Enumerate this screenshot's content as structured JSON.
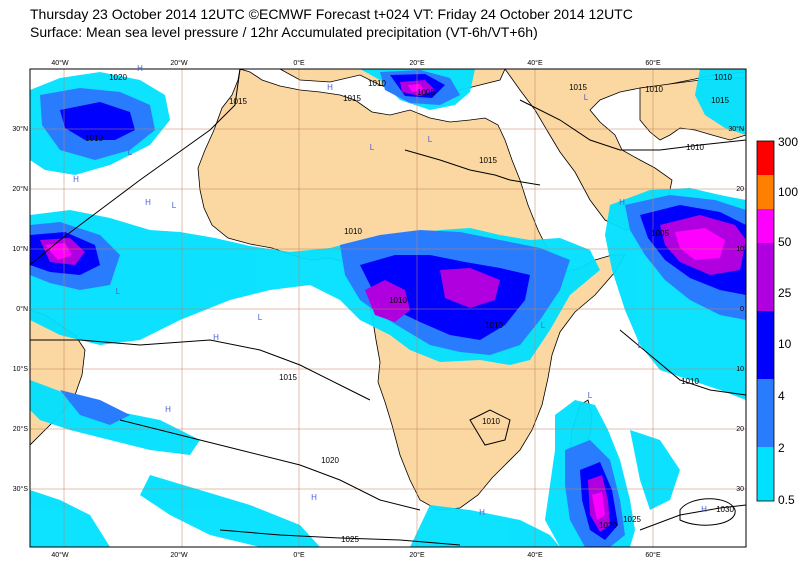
{
  "header": {
    "title_line1": "Thursday 23 October 2014 12UTC ©ECMWF Forecast t+024 VT: Friday 24 October 2014 12UTC",
    "title_line2": "Surface: Mean sea level pressure / 12hr Accumulated precipitation (VT-6h/VT+6h)"
  },
  "map": {
    "lon_labels": [
      "40°W",
      "20°W",
      "0°E",
      "20°E",
      "40°E",
      "60°E"
    ],
    "lat_labels": [
      "30°N",
      "20°N",
      "10°N",
      "0°N",
      "10°S",
      "20°S",
      "30°S"
    ],
    "right_lat_labels": [
      "30°N",
      "20",
      "10",
      "0",
      "10",
      "20",
      "30"
    ],
    "isobar_labels": [
      {
        "text": "1020"
      },
      {
        "text": "1015"
      },
      {
        "text": "1010"
      },
      {
        "text": "1005"
      },
      {
        "text": "1015"
      },
      {
        "text": "1010"
      },
      {
        "text": "1015"
      },
      {
        "text": "1010"
      },
      {
        "text": "1015"
      },
      {
        "text": "1010"
      },
      {
        "text": "1010"
      },
      {
        "text": "1005"
      },
      {
        "text": "1010"
      },
      {
        "text": "1010"
      },
      {
        "text": "1015"
      },
      {
        "text": "1010"
      },
      {
        "text": "1010"
      },
      {
        "text": "1020"
      },
      {
        "text": "1025"
      },
      {
        "text": "1015"
      },
      {
        "text": "1020"
      },
      {
        "text": "1025"
      },
      {
        "text": "1030"
      },
      {
        "text": "1010"
      }
    ],
    "pressure_markers": [
      {
        "text": "H"
      },
      {
        "text": "H"
      },
      {
        "text": "L"
      },
      {
        "text": "H"
      },
      {
        "text": "L"
      },
      {
        "text": "H"
      },
      {
        "text": "L"
      },
      {
        "text": "L"
      },
      {
        "text": "H"
      },
      {
        "text": "L"
      },
      {
        "text": "L"
      },
      {
        "text": "L"
      },
      {
        "text": "H"
      },
      {
        "text": "H"
      },
      {
        "text": "L"
      },
      {
        "text": "L"
      },
      {
        "text": "H"
      },
      {
        "text": "H"
      },
      {
        "text": "H"
      },
      {
        "text": "L"
      }
    ]
  },
  "colorbar": {
    "levels": [
      "300",
      "100",
      "50",
      "25",
      "10",
      "4",
      "2",
      "0.5"
    ],
    "colors": [
      "#ff0000",
      "#ff8000",
      "#ff00ff",
      "#b000e0",
      "#0000ff",
      "#2a7cff",
      "#00e0ff",
      "#ffffff"
    ]
  },
  "colors": {
    "land": "#fbd7a1",
    "sea": "#ffffff",
    "grid": "#c08060",
    "precip_light": "#00e0ff",
    "precip_med": "#2a7cff",
    "precip_heavy": "#0000ff",
    "precip_vheavy": "#b000e0",
    "precip_extreme": "#ff00ff"
  }
}
